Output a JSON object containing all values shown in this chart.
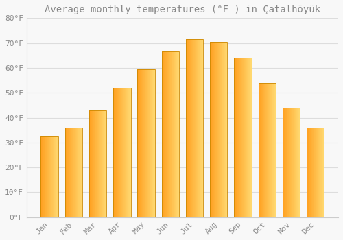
{
  "title": "Average monthly temperatures (°F ) in Çatalhöyük",
  "months": [
    "Jan",
    "Feb",
    "Mar",
    "Apr",
    "May",
    "Jun",
    "Jul",
    "Aug",
    "Sep",
    "Oct",
    "Nov",
    "Dec"
  ],
  "values": [
    32.5,
    36.0,
    43.0,
    52.0,
    59.5,
    66.5,
    71.5,
    70.5,
    64.0,
    54.0,
    44.0,
    36.0
  ],
  "bar_color_left": "#FFA500",
  "bar_color_right": "#FFD060",
  "bar_border_color": "#CC8800",
  "background_color": "#F8F8F8",
  "grid_color": "#DDDDDD",
  "text_color": "#888888",
  "ylim": [
    0,
    80
  ],
  "yticks": [
    0,
    10,
    20,
    30,
    40,
    50,
    60,
    70,
    80
  ],
  "ytick_labels": [
    "0°F",
    "10°F",
    "20°F",
    "30°F",
    "40°F",
    "50°F",
    "60°F",
    "70°F",
    "80°F"
  ],
  "title_fontsize": 10,
  "tick_fontsize": 8,
  "font_family": "monospace"
}
